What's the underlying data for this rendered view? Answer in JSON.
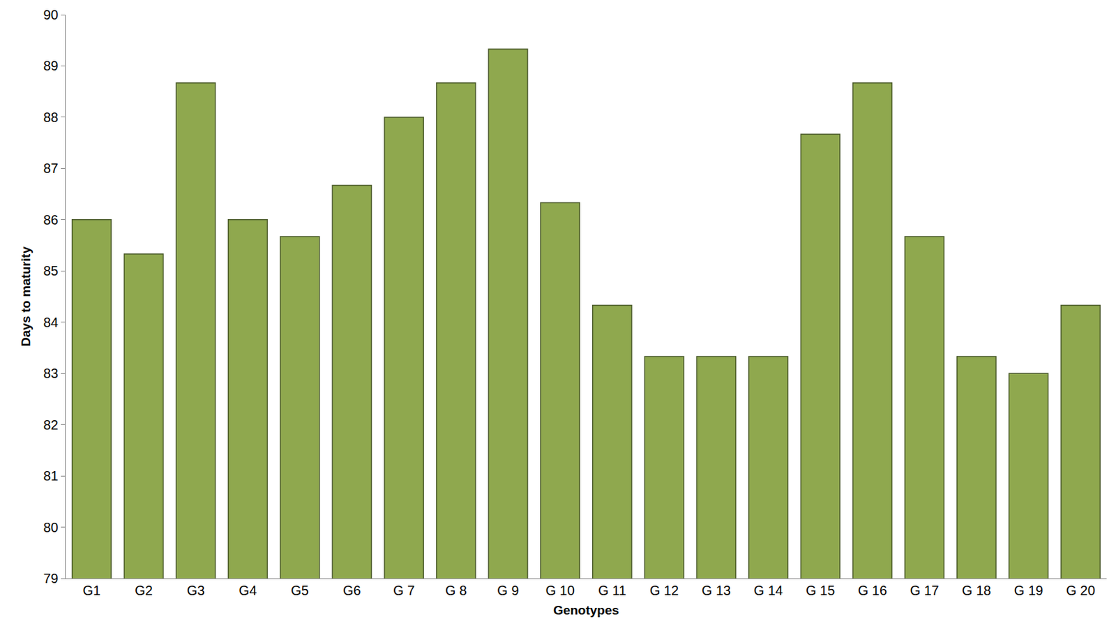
{
  "chart_data": {
    "type": "bar",
    "x_label": "Genotypes",
    "y_label": "Days to maturity",
    "categories": [
      "G1",
      "G2",
      "G3",
      "G4",
      "G5",
      "G6",
      "G 7",
      "G 8",
      "G 9",
      "G 10",
      "G 11",
      "G 12",
      "G 13",
      "G 14",
      "G 15",
      "G 16",
      "G 17",
      "G 18",
      "G 19",
      "G 20"
    ],
    "values": [
      86,
      85.33,
      88.67,
      86,
      85.67,
      86.67,
      88,
      88.67,
      89.33,
      86.33,
      84.33,
      83.33,
      83.33,
      83.33,
      87.67,
      88.67,
      85.67,
      83.33,
      83,
      84.33
    ],
    "color": "#8fa84e",
    "ylim": [
      79,
      90
    ],
    "yticks": [
      79,
      80,
      81,
      82,
      83,
      84,
      85,
      86,
      87,
      88,
      89,
      90
    ],
    "grid": false
  }
}
